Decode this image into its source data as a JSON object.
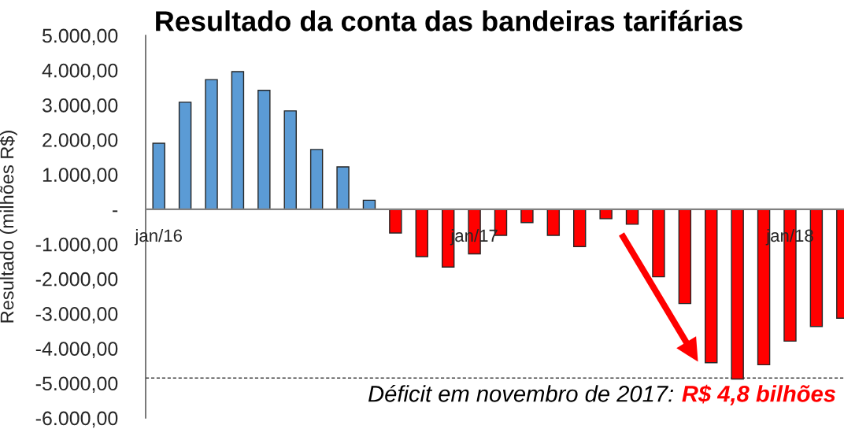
{
  "chart_data": {
    "type": "bar",
    "title": "Resultado da conta das bandeiras tarifárias",
    "ylabel": "Resultado (milhões R$)",
    "categories": [
      "jan/16",
      null,
      null,
      null,
      null,
      null,
      null,
      null,
      null,
      null,
      null,
      null,
      "jan/17",
      null,
      null,
      null,
      null,
      null,
      null,
      null,
      null,
      null,
      null,
      null,
      "jan/18",
      null,
      null
    ],
    "values": [
      1900,
      3080,
      3730,
      3960,
      3420,
      2830,
      1720,
      1220,
      260,
      -680,
      -1360,
      -1660,
      -1280,
      -750,
      -380,
      -750,
      -1070,
      -270,
      -430,
      -1940,
      -2710,
      -4410,
      -4880,
      -4470,
      -3790,
      -3370,
      -3130
    ],
    "colors": [
      "#5b9bd5",
      "#5b9bd5",
      "#5b9bd5",
      "#5b9bd5",
      "#5b9bd5",
      "#5b9bd5",
      "#5b9bd5",
      "#5b9bd5",
      "#5b9bd5",
      "#ff0000",
      "#ff0000",
      "#ff0000",
      "#ff0000",
      "#ff0000",
      "#ff0000",
      "#ff0000",
      "#ff0000",
      "#ff0000",
      "#ff0000",
      "#ff0000",
      "#ff0000",
      "#ff0000",
      "#ff0000",
      "#ff0000",
      "#ff0000",
      "#ff0000",
      "#ff0000"
    ],
    "ylim": [
      -6000,
      5000
    ],
    "yticks": [
      {
        "value": -6000,
        "label": "-6.000,00"
      },
      {
        "value": -5000,
        "label": "-5.000,00"
      },
      {
        "value": -4000,
        "label": "-4.000,00"
      },
      {
        "value": -3000,
        "label": "-3.000,00"
      },
      {
        "value": -2000,
        "label": "-2.000,00"
      },
      {
        "value": -1000,
        "label": "-1.000,00"
      },
      {
        "value": 0,
        "label": "-"
      },
      {
        "value": 1000,
        "label": "1.000,00"
      },
      {
        "value": 2000,
        "label": "2.000,00"
      },
      {
        "value": 3000,
        "label": "3.000,00"
      },
      {
        "value": 4000,
        "label": "4.000,00"
      },
      {
        "value": 5000,
        "label": "5.000,00"
      }
    ],
    "ref_lines": [
      {
        "axis": "y",
        "value": -4850,
        "color": "#404040",
        "line_style": "dashed"
      }
    ],
    "annotations": [
      "Déficit em novembro de 2017:",
      "R$ 4,8 bilhões"
    ]
  }
}
